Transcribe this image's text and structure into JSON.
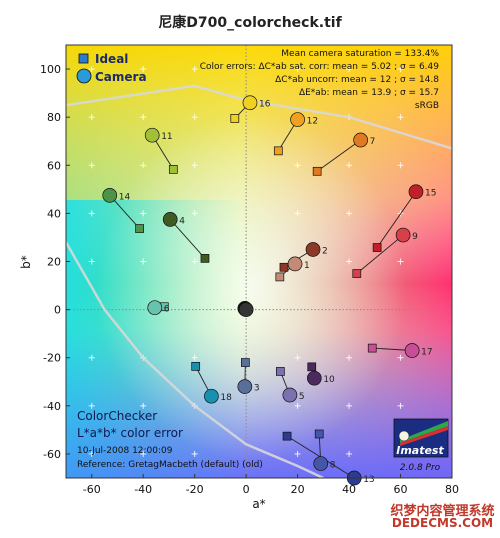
{
  "title": "尼康D700_colorcheck.tif",
  "chart_data": {
    "type": "scatter",
    "xlabel": "a*",
    "ylabel": "b*",
    "xlim": [
      -70,
      80
    ],
    "ylim": [
      -70,
      110
    ],
    "xticks": [
      -60,
      -40,
      -20,
      0,
      20,
      40,
      60,
      80
    ],
    "yticks": [
      -60,
      -40,
      -20,
      0,
      20,
      40,
      60,
      80,
      100
    ],
    "grid": true,
    "legend_position": "top-left",
    "legend": [
      {
        "label": "Ideal",
        "marker": "square"
      },
      {
        "label": "Camera",
        "marker": "circle"
      }
    ],
    "stats": [
      "Mean camera saturation = 133.4%",
      "Color errors:  ΔC*ab sat. corr:  mean = 5.02 ;  σ = 6.49",
      "ΔC*ab uncorr:  mean = 12 ;  σ = 14.8",
      "ΔE*ab:  mean = 13.9 ;  σ = 15.7",
      "sRGB"
    ],
    "info": {
      "name": "ColorChecker",
      "subtitle": "L*a*b* color error",
      "date": "10-Jul-2008 12:00:09",
      "reference": "Reference: GretagMacbeth (default) (old)"
    },
    "logo": {
      "brand": "Imatest",
      "version": "2.0.8  Pro"
    },
    "patches": [
      {
        "id": "1",
        "ideal": [
          13.1,
          13.6
        ],
        "camera": [
          19,
          19
        ],
        "color": "#c48a75"
      },
      {
        "id": "2",
        "ideal": [
          14.7,
          17.6
        ],
        "camera": [
          26,
          25
        ],
        "color": "#8b3a28"
      },
      {
        "id": "3",
        "ideal": [
          -0.3,
          -22.0
        ],
        "camera": [
          -0.5,
          -32
        ],
        "color": "#5a6e9a"
      },
      {
        "id": "4",
        "ideal": [
          -16.0,
          21.3
        ],
        "camera": [
          -29.5,
          37.5
        ],
        "color": "#3f5a22"
      },
      {
        "id": "5",
        "ideal": [
          13.3,
          -25.7
        ],
        "camera": [
          17,
          -35.5
        ],
        "color": "#7d70b0"
      },
      {
        "id": "6",
        "ideal": [
          -31.8,
          1.2
        ],
        "camera": [
          -35.5,
          0.8
        ],
        "color": "#67c3ae"
      },
      {
        "id": "7",
        "ideal": [
          27.6,
          57.5
        ],
        "camera": [
          44.5,
          70.5
        ],
        "color": "#e07a20"
      },
      {
        "id": "8",
        "ideal": [
          28.4,
          -51.7
        ],
        "camera": [
          29,
          -64
        ],
        "color": "#4356a8"
      },
      {
        "id": "9",
        "ideal": [
          43.0,
          15.0
        ],
        "camera": [
          61,
          31
        ],
        "color": "#d5404a"
      },
      {
        "id": "10",
        "ideal": [
          25.5,
          -23.8
        ],
        "camera": [
          26.5,
          -28.5
        ],
        "color": "#4c2a5e"
      },
      {
        "id": "11",
        "ideal": [
          -28.3,
          58.3
        ],
        "camera": [
          -36.5,
          72.5
        ],
        "color": "#a0c038"
      },
      {
        "id": "12",
        "ideal": [
          12.5,
          66.0
        ],
        "camera": [
          20,
          79
        ],
        "color": "#f0a020"
      },
      {
        "id": "13",
        "ideal": [
          15.9,
          -52.6
        ],
        "camera": [
          42,
          -70
        ],
        "color": "#2c3c94"
      },
      {
        "id": "14",
        "ideal": [
          -41.4,
          33.7
        ],
        "camera": [
          -53,
          47.5
        ],
        "color": "#4c9448"
      },
      {
        "id": "15",
        "ideal": [
          50.9,
          25.8
        ],
        "camera": [
          66,
          49
        ],
        "color": "#c02028"
      },
      {
        "id": "16",
        "ideal": [
          -4.4,
          79.5
        ],
        "camera": [
          1.5,
          86
        ],
        "color": "#f0d020"
      },
      {
        "id": "17",
        "ideal": [
          49.0,
          -16.0
        ],
        "camera": [
          64.5,
          -17
        ],
        "color": "#c84e98"
      },
      {
        "id": "18",
        "ideal": [
          -19.6,
          -23.6
        ],
        "camera": [
          -13.5,
          -36
        ],
        "color": "#1890b0"
      },
      {
        "id": "19",
        "ideal": [
          0.0,
          0.0
        ],
        "camera": [
          -0.5,
          0.5
        ],
        "color": "#f3f3f2"
      },
      {
        "id": "20",
        "ideal": [
          0.0,
          0.0
        ],
        "camera": [
          -0.4,
          0.4
        ],
        "color": "#c8c8c8"
      },
      {
        "id": "21",
        "ideal": [
          0.0,
          0.0
        ],
        "camera": [
          -0.3,
          0.3
        ],
        "color": "#a0a0a0"
      },
      {
        "id": "22",
        "ideal": [
          0.0,
          0.0
        ],
        "camera": [
          -0.2,
          0.2
        ],
        "color": "#7a7a79"
      },
      {
        "id": "23",
        "ideal": [
          0.0,
          0.0
        ],
        "camera": [
          -0.1,
          0.1
        ],
        "color": "#555555"
      },
      {
        "id": "24",
        "ideal": [
          0.0,
          0.0
        ],
        "camera": [
          0.0,
          0.0
        ],
        "color": "#343434"
      }
    ],
    "boundary_upper": [
      [
        -70,
        85
      ],
      [
        -20,
        93
      ],
      [
        0,
        87
      ],
      [
        40,
        80
      ],
      [
        80,
        67
      ]
    ],
    "boundary_lower": [
      [
        -70,
        28
      ],
      [
        -55,
        0
      ],
      [
        -40,
        -20
      ],
      [
        -20,
        -40
      ],
      [
        0,
        -56
      ],
      [
        20,
        -65
      ],
      [
        30,
        -70
      ]
    ]
  },
  "watermark": {
    "line1": "织梦内容管理系统",
    "line2": "DEDECMS.COM"
  }
}
